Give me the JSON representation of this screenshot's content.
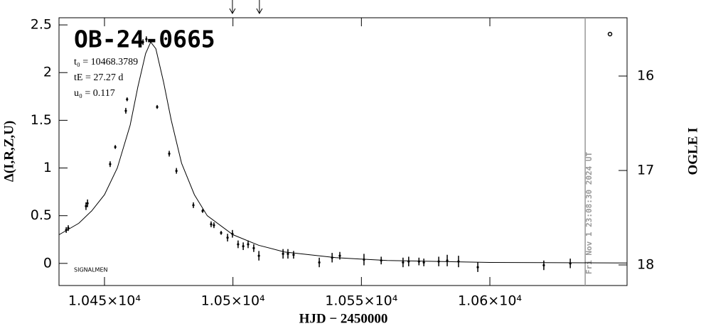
{
  "chart_data": {
    "type": "scatter",
    "title": "OB-24-0665",
    "annotations": [
      "t₀ = 10468.3789",
      "tE = 27.27 d",
      "u₀ = 0.117"
    ],
    "footnote": "SIGNALMEN",
    "xlabel": "HJD − 2450000",
    "ylabel": "Δ(I,R,Z,U)",
    "y2label": "OGLE I",
    "color": "#000000",
    "x": [
      10435.1,
      10435.9,
      10442.8,
      10443.4,
      10452.2,
      10454.2,
      10458.3,
      10458.8,
      10465.0,
      10466.3,
      10470.5,
      10475.2,
      10478.0,
      10484.6,
      10488.2,
      10491.5,
      10492.6,
      10495.4,
      10497.9,
      10499.8,
      10502.0,
      10504.0,
      10505.9,
      10508.1,
      10510.1,
      10519.5,
      10521.4,
      10523.6,
      10533.6,
      10538.6,
      10541.6,
      10551.0,
      10557.7,
      10566.2,
      10568.4,
      10572.4,
      10574.3,
      10580.1,
      10583.4,
      10587.8,
      10595.3,
      10621.0,
      10631.3
    ],
    "values": [
      0.35,
      0.37,
      0.6,
      0.63,
      1.04,
      1.22,
      1.6,
      1.72,
      2.32,
      2.35,
      1.64,
      1.15,
      0.97,
      0.61,
      0.55,
      0.41,
      0.4,
      0.32,
      0.27,
      0.31,
      0.2,
      0.18,
      0.2,
      0.16,
      0.08,
      0.1,
      0.1,
      0.09,
      0.01,
      0.06,
      0.08,
      0.04,
      0.03,
      0.01,
      0.02,
      0.02,
      0.01,
      0.02,
      0.03,
      0.02,
      -0.04,
      -0.02,
      0.0
    ],
    "errors": [
      0.03,
      0.03,
      0.04,
      0.04,
      0.03,
      0.02,
      0.03,
      0.02,
      0.03,
      0.03,
      0.02,
      0.03,
      0.03,
      0.03,
      0.02,
      0.03,
      0.03,
      0.02,
      0.04,
      0.04,
      0.04,
      0.04,
      0.04,
      0.04,
      0.05,
      0.05,
      0.05,
      0.04,
      0.05,
      0.05,
      0.04,
      0.06,
      0.04,
      0.05,
      0.05,
      0.04,
      0.04,
      0.05,
      0.06,
      0.06,
      0.05,
      0.05,
      0.05
    ],
    "model": {
      "x": [
        10432.3,
        10440,
        10445,
        10450,
        10455,
        10460,
        10463,
        10466,
        10468,
        10470,
        10473,
        10476,
        10480,
        10485,
        10490,
        10500,
        10510,
        10520,
        10540,
        10560,
        10600,
        10653.4
      ],
      "values": [
        0.3,
        0.42,
        0.55,
        0.72,
        1.0,
        1.45,
        1.85,
        2.2,
        2.32,
        2.25,
        1.9,
        1.5,
        1.05,
        0.72,
        0.5,
        0.3,
        0.19,
        0.12,
        0.06,
        0.03,
        0.01,
        0.005
      ],
      "color": "#000000"
    },
    "arrows_x": [
      10499.8,
      10510.3
    ],
    "now_line": {
      "x": 10637.1,
      "label": "Fri Nov  1 23:08:30 2024 UT",
      "color": "#999999"
    },
    "xlim": [
      10432.3,
      10653.4
    ],
    "xticks": [
      {
        "value": 10450,
        "label": "1.045×10⁴"
      },
      {
        "value": 10500,
        "label": "1.05×10⁴"
      },
      {
        "value": 10550,
        "label": "1.055×10⁴"
      },
      {
        "value": 10600,
        "label": "1.06×10⁴"
      }
    ],
    "ylim": [
      -0.232,
      2.575
    ],
    "yticks": [
      0,
      0.5,
      1,
      1.5,
      2,
      2.5
    ],
    "y2lim": [
      18.218,
      15.383
    ],
    "y2ticks": [
      16,
      17,
      18
    ]
  }
}
